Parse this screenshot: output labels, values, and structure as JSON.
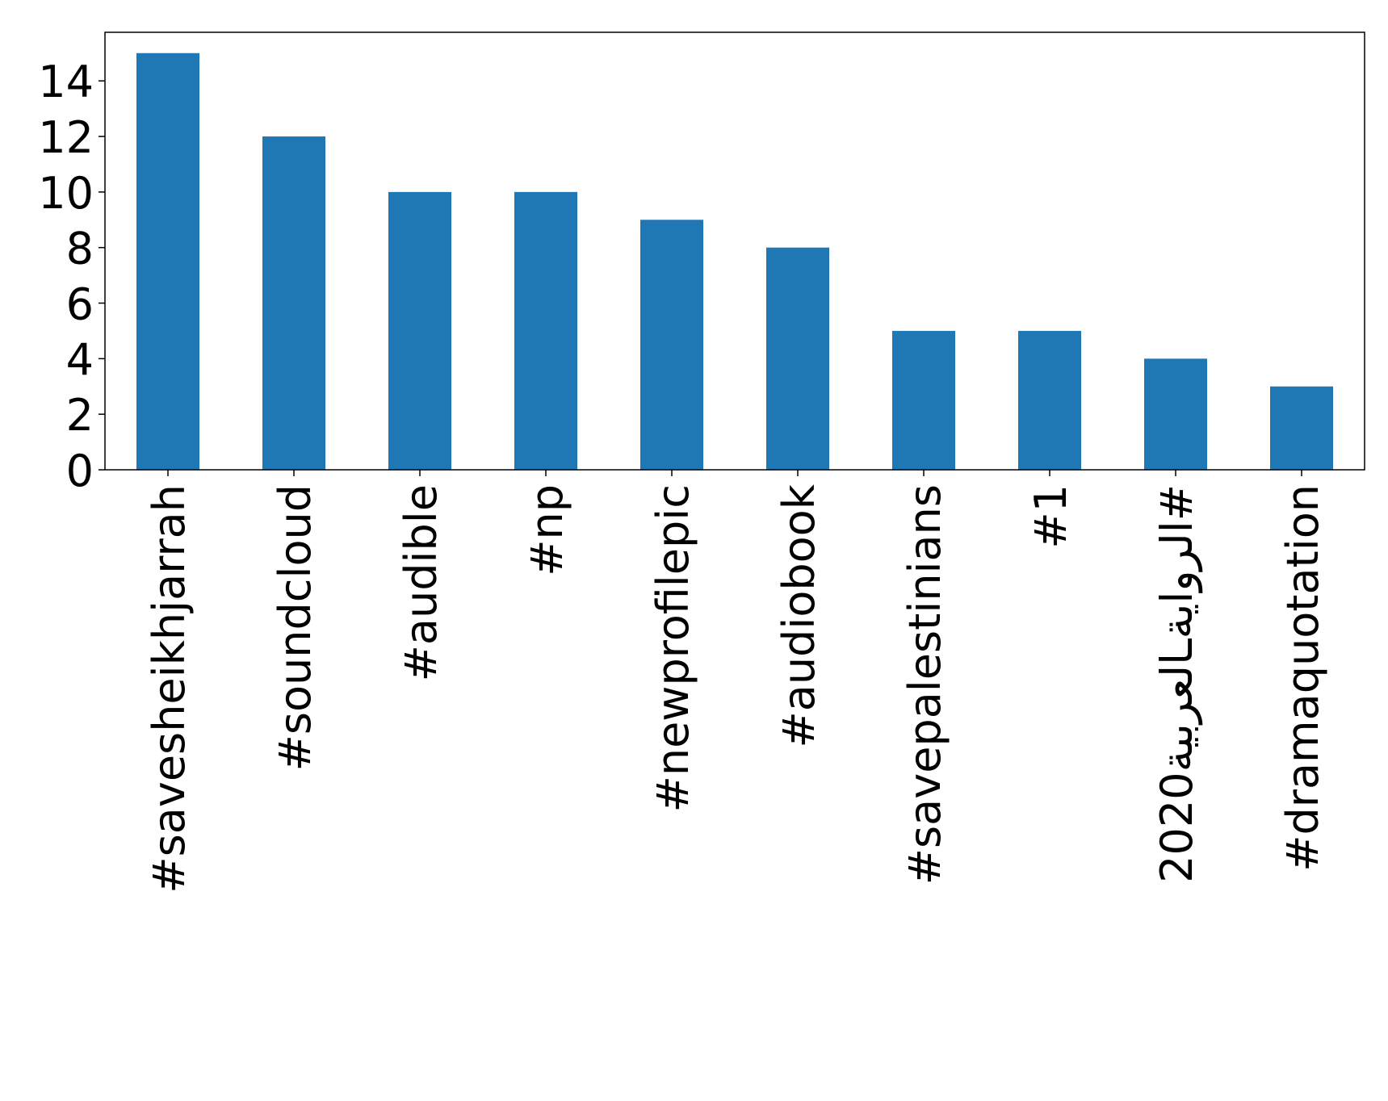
{
  "chart_data": {
    "type": "bar",
    "categories": [
      "#savesheikhjarrah",
      "#soundcloud",
      "#audible",
      "#np",
      "#newprofilepic",
      "#audiobook",
      "#savepalestinians",
      "#1",
      "#الروايةـالعربية2020",
      "#dramaquotation"
    ],
    "values": [
      15,
      12,
      10,
      10,
      9,
      8,
      5,
      5,
      4,
      3
    ],
    "ylim": [
      0,
      15.75
    ],
    "yticks": [
      0,
      2,
      4,
      6,
      8,
      10,
      12,
      14
    ],
    "bar_color": "#1f77b4",
    "grid": false,
    "legend": "none",
    "title": "",
    "xlabel": "",
    "ylabel": ""
  }
}
